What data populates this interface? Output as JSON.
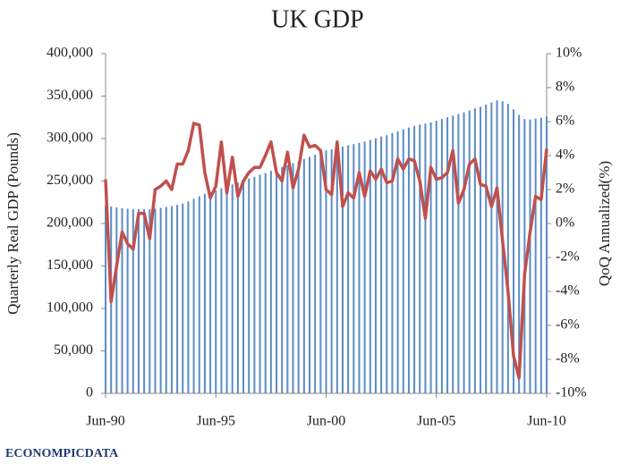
{
  "chart_data": {
    "type": "combo",
    "title": "UK GDP",
    "y_label": "Quarterly Real GDP (Pounds)",
    "y2_label": "QoQ Annualized(%)",
    "logo": "ECONOMPICDATA",
    "categories": [
      "Jun-90",
      null,
      null,
      null,
      null,
      null,
      null,
      null,
      null,
      null,
      null,
      null,
      null,
      null,
      null,
      null,
      null,
      null,
      null,
      null,
      "Jun-95",
      null,
      null,
      null,
      null,
      null,
      null,
      null,
      null,
      null,
      null,
      null,
      null,
      null,
      null,
      null,
      null,
      null,
      null,
      null,
      "Jun-00",
      null,
      null,
      null,
      null,
      null,
      null,
      null,
      null,
      null,
      null,
      null,
      null,
      null,
      null,
      null,
      null,
      null,
      null,
      null,
      "Jun-05",
      null,
      null,
      null,
      null,
      null,
      null,
      null,
      null,
      null,
      null,
      null,
      null,
      null,
      null,
      null,
      null,
      null,
      null,
      null,
      "Jun-10"
    ],
    "series": [
      {
        "type": "bar",
        "color": "#5b8cc4",
        "values": [
          221000,
          220000,
          219000,
          218000,
          217500,
          217000,
          217000,
          217000,
          216800,
          217500,
          218500,
          219500,
          220500,
          222000,
          223500,
          226000,
          229000,
          232000,
          235000,
          237000,
          239000,
          241500,
          243500,
          246000,
          248000,
          250500,
          253000,
          255000,
          257500,
          259500,
          262000,
          264000,
          266500,
          268500,
          271000,
          273000,
          276000,
          278500,
          281000,
          283500,
          286000,
          287500,
          289000,
          290500,
          292000,
          293500,
          295000,
          296500,
          298500,
          300500,
          302500,
          304000,
          306500,
          308500,
          311000,
          313000,
          315000,
          316500,
          317500,
          319000,
          321000,
          323000,
          325000,
          327000,
          329000,
          331000,
          333000,
          335500,
          337500,
          340000,
          342500,
          345000,
          344000,
          341000,
          334500,
          328000,
          323000,
          322500,
          323500,
          324500,
          326000
        ]
      },
      {
        "type": "line",
        "axis": "y2",
        "color": "#c0504d",
        "values": [
          2.6,
          -4.6,
          -2.5,
          -0.5,
          -1.2,
          -1.5,
          0.6,
          0.6,
          -0.9,
          2.0,
          2.2,
          2.5,
          2.0,
          3.5,
          3.5,
          4.3,
          5.9,
          5.8,
          3.0,
          1.5,
          2.2,
          4.8,
          1.8,
          3.9,
          1.6,
          2.5,
          3.0,
          3.3,
          3.3,
          4.0,
          4.8,
          3.0,
          2.5,
          4.2,
          2.1,
          3.2,
          5.2,
          4.5,
          4.6,
          4.3,
          2.0,
          1.7,
          4.8,
          1.0,
          1.8,
          1.5,
          3.0,
          1.6,
          3.1,
          2.6,
          3.2,
          2.4,
          2.5,
          3.8,
          3.2,
          3.8,
          3.7,
          2.5,
          0.3,
          3.3,
          2.6,
          2.7,
          3.0,
          4.3,
          1.2,
          2.0,
          3.5,
          3.8,
          2.3,
          2.2,
          1.0,
          2.1,
          -1.0,
          -4.0,
          -7.8,
          -9.1,
          -3.0,
          -0.5,
          1.6,
          1.4,
          4.4
        ]
      }
    ],
    "ylim": [
      0,
      400000
    ],
    "yticks": [
      0,
      {
        "value": 50000,
        "label": "50,000"
      },
      {
        "value": 100000,
        "label": "100,000"
      },
      {
        "value": 150000,
        "label": "150,000"
      },
      {
        "value": 200000,
        "label": "200,000"
      },
      {
        "value": 250000,
        "label": "250,000"
      },
      {
        "value": 300000,
        "label": "300,000"
      },
      {
        "value": 350000,
        "label": "350,000"
      },
      {
        "value": 400000,
        "label": "400,000"
      }
    ],
    "y2lim": [
      -10,
      10
    ],
    "y2ticks": [
      {
        "value": -10,
        "label": "-10%"
      },
      {
        "value": -8,
        "label": "-8%"
      },
      {
        "value": -6,
        "label": "-6%"
      },
      {
        "value": -4,
        "label": "-4%"
      },
      {
        "value": -2,
        "label": "-2%"
      },
      {
        "value": 0,
        "label": "0%"
      },
      {
        "value": 2,
        "label": "2%"
      },
      {
        "value": 4,
        "label": "4%"
      },
      {
        "value": 6,
        "label": "6%"
      },
      {
        "value": 8,
        "label": "8%"
      },
      {
        "value": 10,
        "label": "10%"
      }
    ]
  }
}
